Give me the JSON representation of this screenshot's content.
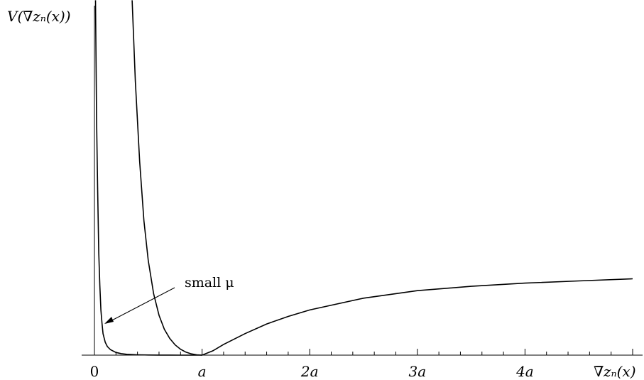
{
  "chart_data": {
    "type": "line",
    "xlabel": "∇̅zₙ(x)",
    "ylabel": "V(∇̅zₙ(x))",
    "xlim": [
      0,
      5
    ],
    "ylim": [
      0,
      3.25
    ],
    "xticks": [
      {
        "value": 0,
        "label": "0"
      },
      {
        "value": 1,
        "label": "a"
      },
      {
        "value": 2,
        "label": "2a"
      },
      {
        "value": 3,
        "label": "3a"
      },
      {
        "value": 4,
        "label": "4a"
      }
    ],
    "minor_tick_step": 0.2,
    "series": [
      {
        "x": [
          0.01,
          0.02,
          0.03,
          0.04,
          0.05,
          0.06,
          0.07,
          0.08,
          0.1,
          0.12,
          0.15,
          0.2,
          0.25,
          0.3,
          0.35,
          0.4,
          0.5,
          0.6,
          0.7,
          0.8,
          0.9,
          1.0
        ],
        "y": [
          3.3,
          2.2,
          1.55,
          0.95,
          0.65,
          0.42,
          0.3,
          0.2,
          0.12,
          0.08,
          0.05,
          0.025,
          0.014,
          0.008,
          0.005,
          0.003,
          0.0015,
          0.0008,
          0.0004,
          0.0002,
          0.0001,
          0.0
        ]
      },
      {
        "x": [
          0.35,
          0.38,
          0.42,
          0.46,
          0.5,
          0.55,
          0.6,
          0.65,
          0.7,
          0.75,
          0.8,
          0.85,
          0.9,
          0.95,
          1.0,
          1.1,
          1.2,
          1.4,
          1.6,
          1.8,
          2.0,
          2.5,
          3.0,
          3.5,
          4.0,
          4.5,
          5.0
        ],
        "y": [
          3.3,
          2.55,
          1.8,
          1.25,
          0.88,
          0.57,
          0.37,
          0.24,
          0.155,
          0.095,
          0.055,
          0.028,
          0.012,
          0.003,
          0.0,
          0.04,
          0.1,
          0.2,
          0.29,
          0.36,
          0.42,
          0.53,
          0.6,
          0.64,
          0.67,
          0.69,
          0.71
        ]
      }
    ],
    "annotations": [
      {
        "text": "small μ",
        "x": 0.1,
        "y": 0.3
      }
    ]
  }
}
